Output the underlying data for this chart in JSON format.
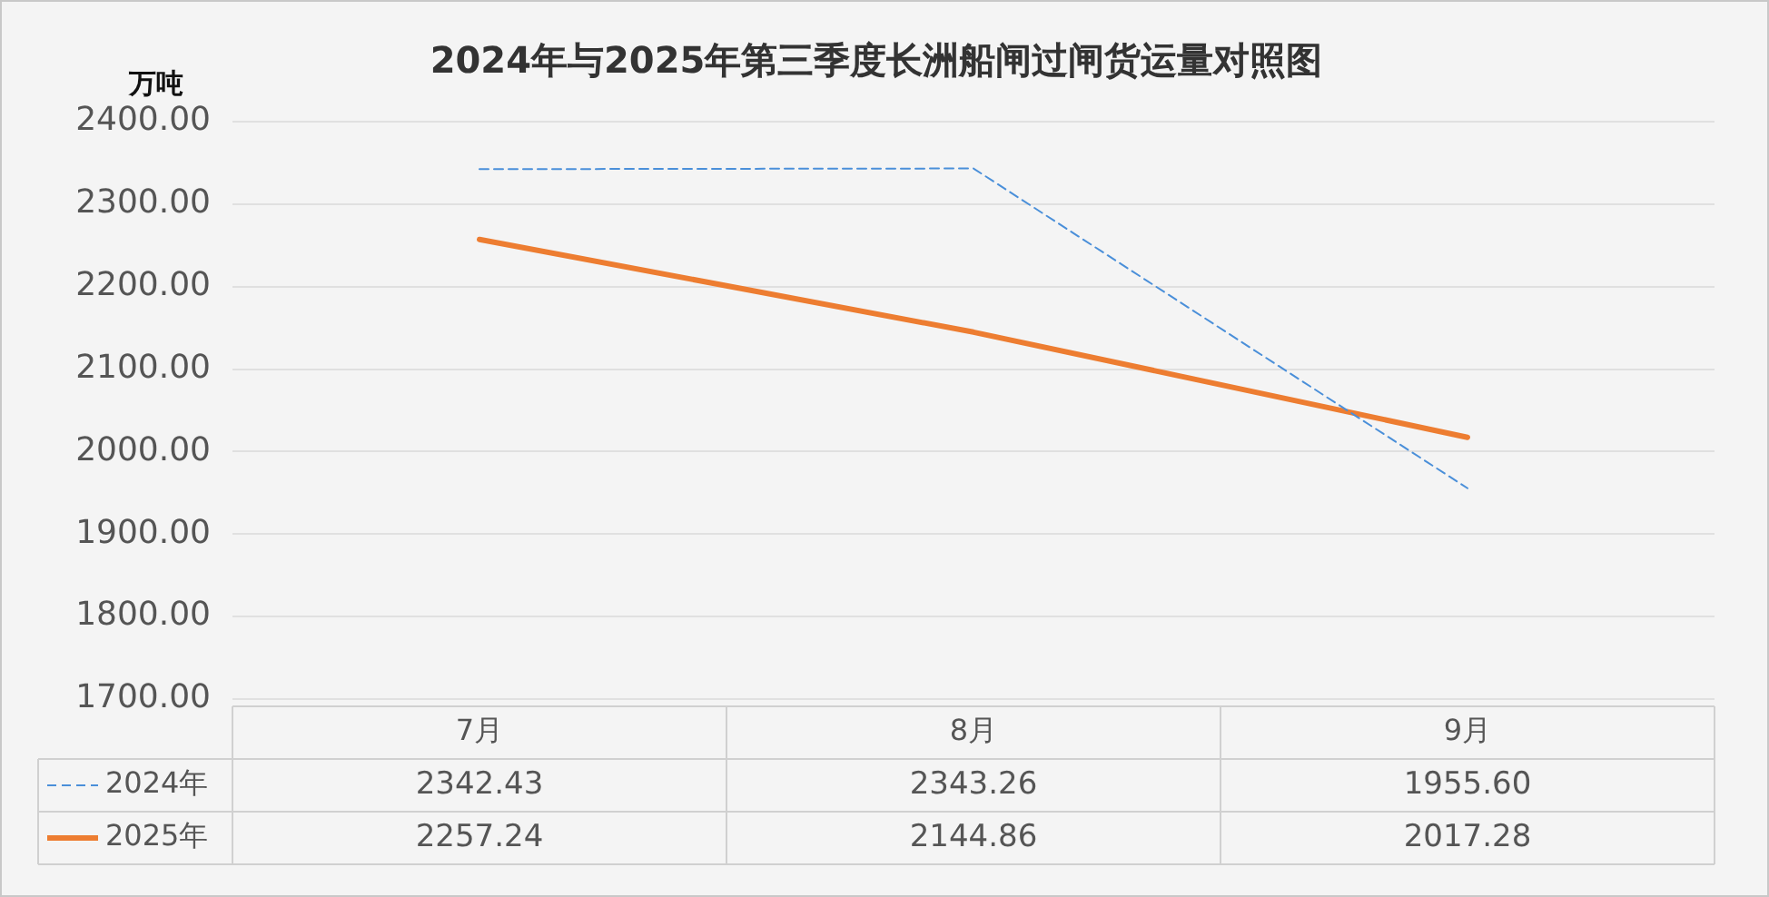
{
  "chart_data": {
    "type": "line",
    "title": "2024年与2025年第三季度长洲船闸过闸货运量对照图",
    "ylabel": "万吨",
    "categories": [
      "7月",
      "8月",
      "9月"
    ],
    "series": [
      {
        "name": "2024年",
        "color": "#4a8fd9",
        "values": [
          2342.43,
          2343.26,
          1955.6
        ],
        "value_labels": [
          "2342.43",
          "2343.26",
          "1955.60"
        ],
        "line_style": "dashed"
      },
      {
        "name": "2025年",
        "color": "#ed7d31",
        "values": [
          2257.24,
          2144.86,
          2017.28
        ],
        "value_labels": [
          "2257.24",
          "2144.86",
          "2017.28"
        ],
        "line_style": "solid"
      }
    ],
    "ylim": [
      1700,
      2400
    ],
    "yticks": [
      {
        "value": 1700,
        "label": "1700.00"
      },
      {
        "value": 1800,
        "label": "1800.00"
      },
      {
        "value": 1900,
        "label": "1900.00"
      },
      {
        "value": 2000,
        "label": "2000.00"
      },
      {
        "value": 2100,
        "label": "2100.00"
      },
      {
        "value": 2200,
        "label": "2200.00"
      },
      {
        "value": 2300,
        "label": "2300.00"
      },
      {
        "value": 2400,
        "label": "2400.00"
      }
    ],
    "grid": "y",
    "legend": "bottom",
    "marker": "none"
  }
}
